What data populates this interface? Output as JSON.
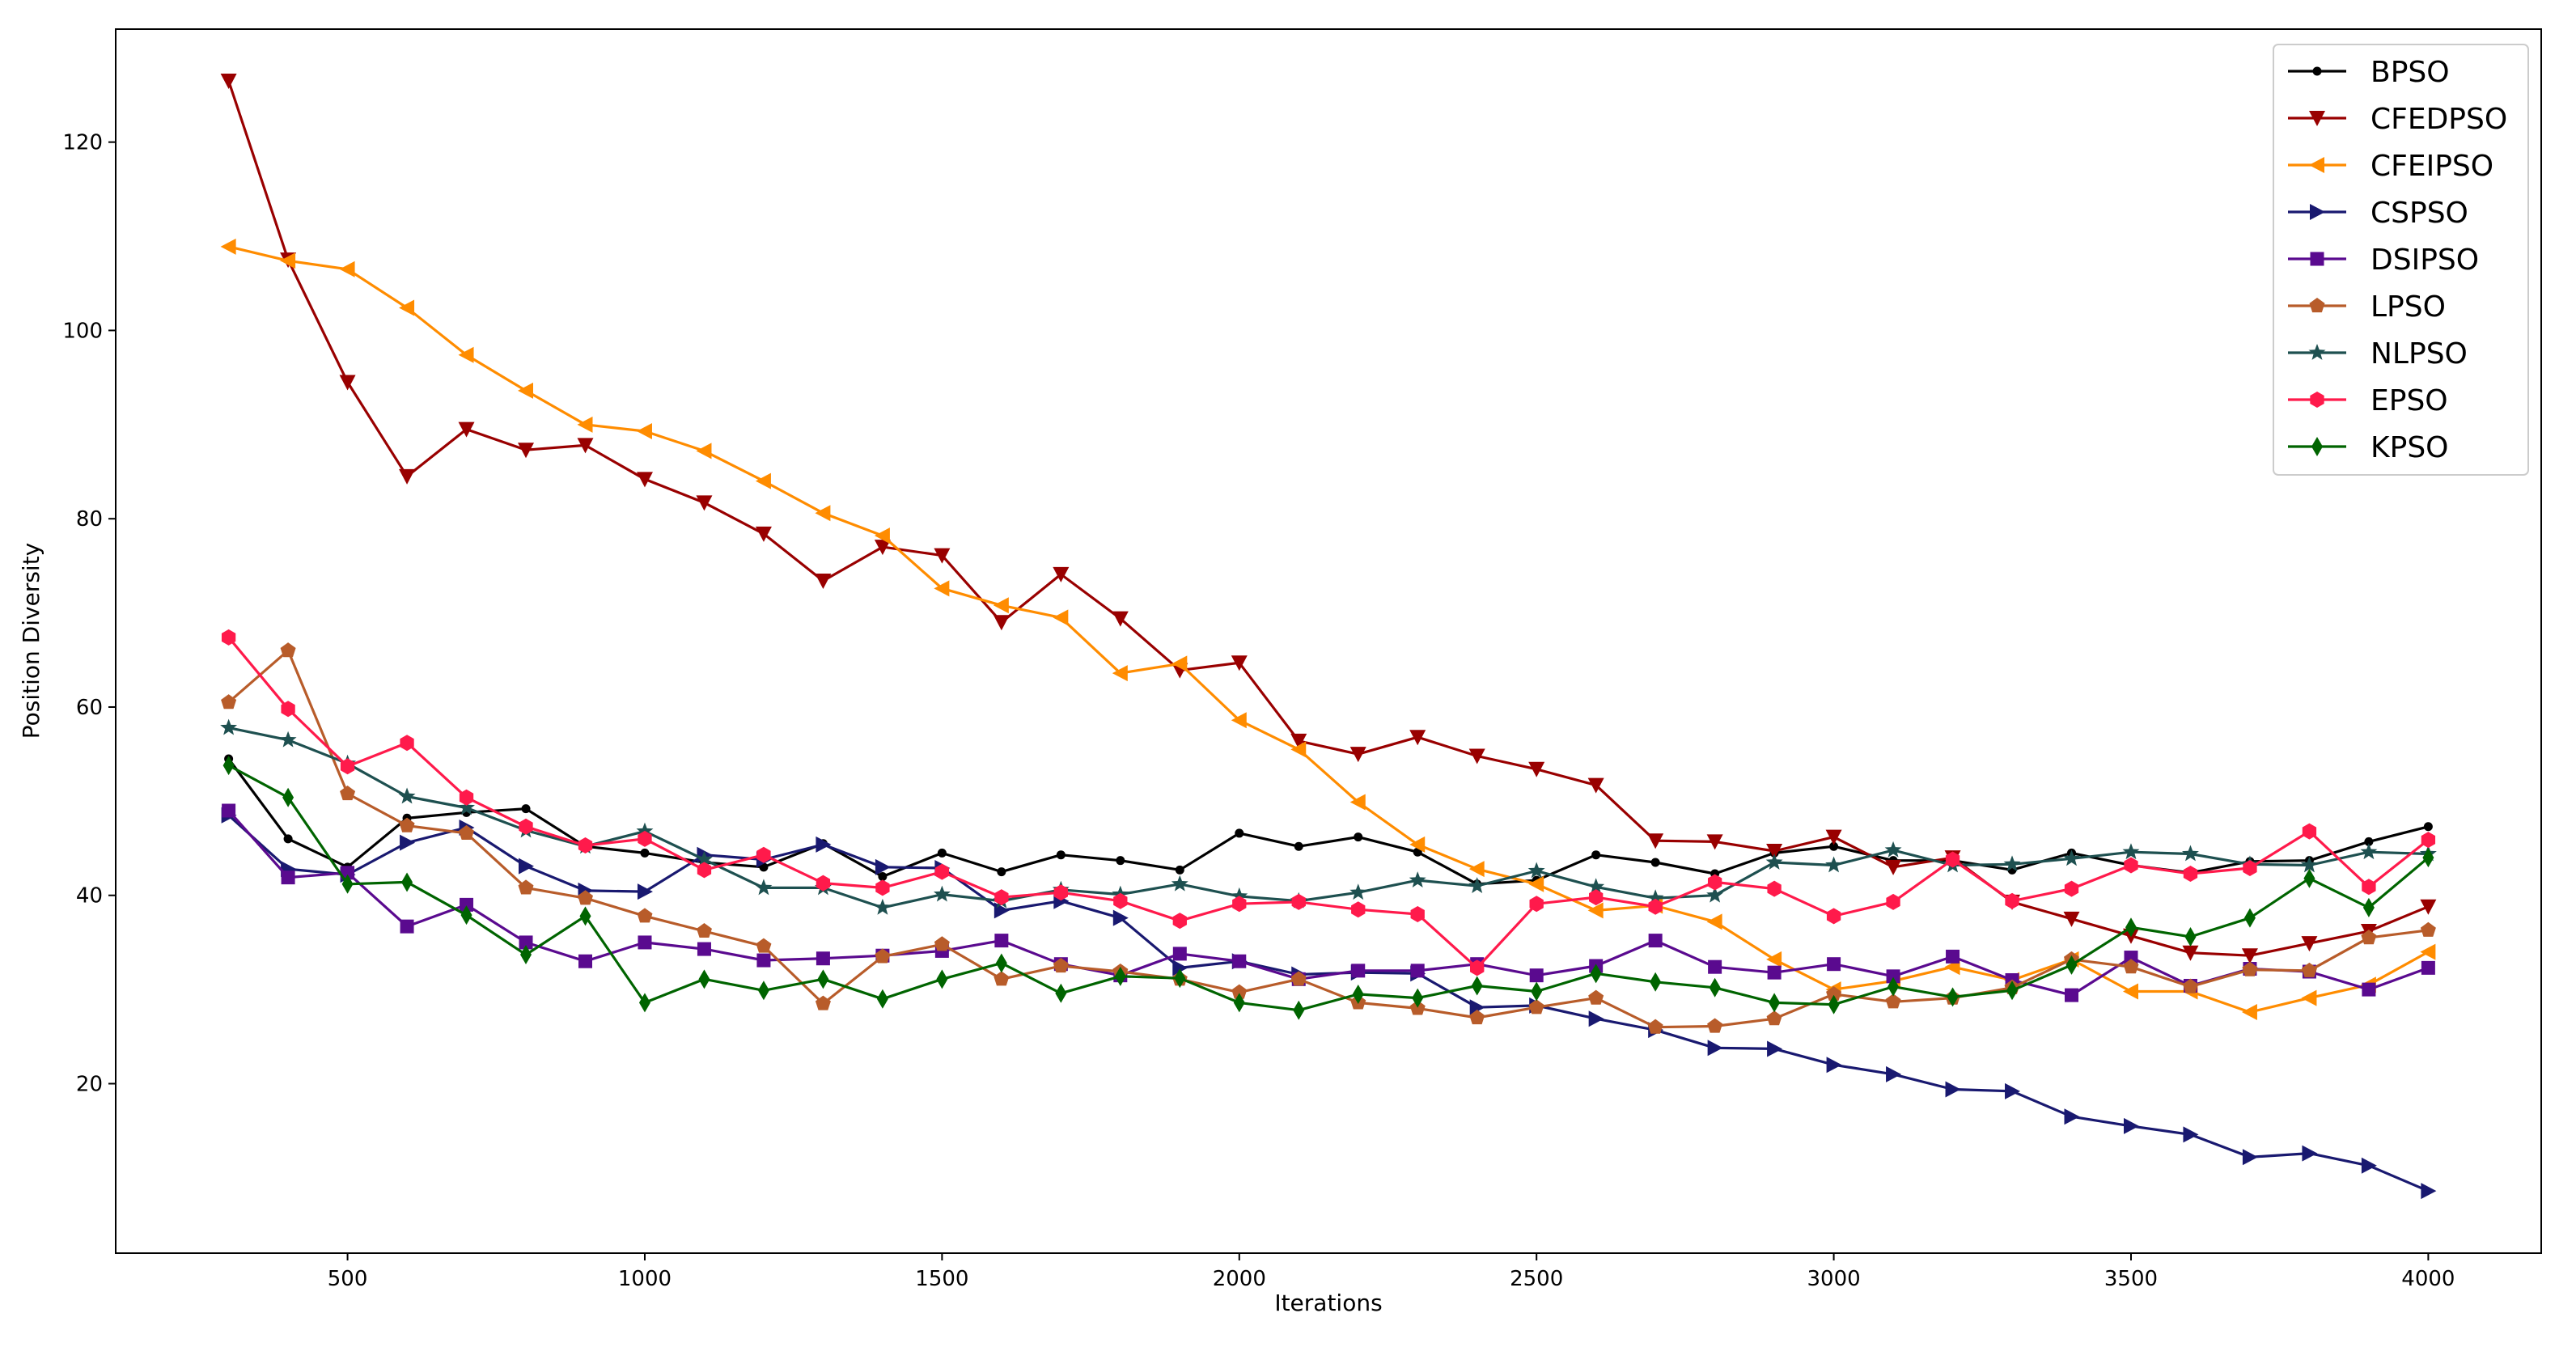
{
  "chart_data": {
    "type": "line",
    "title": "",
    "xlabel": "Iterations",
    "ylabel": "Position Diversity",
    "xlim": [
      110,
      4190
    ],
    "ylim": [
      2,
      132
    ],
    "xticks": [
      500,
      1000,
      1500,
      2000,
      2500,
      3000,
      3500,
      4000
    ],
    "yticks": [
      20,
      40,
      60,
      80,
      100,
      120
    ],
    "grid": false,
    "legend_position": "top-right",
    "x": [
      300,
      400,
      500,
      600,
      700,
      800,
      900,
      1000,
      1100,
      1200,
      1300,
      1400,
      1500,
      1600,
      1700,
      1800,
      1900,
      2000,
      2100,
      2200,
      2300,
      2400,
      2500,
      2600,
      2700,
      2800,
      2900,
      3000,
      3100,
      3200,
      3300,
      3400,
      3500,
      3600,
      3700,
      3800,
      3900,
      4000
    ],
    "series": [
      {
        "name": "BPSO",
        "color": "#000000",
        "marker": "point",
        "values": [
          54.5,
          46,
          43,
          48.2,
          48.8,
          49.2,
          45.2,
          44.5,
          43.5,
          43,
          45.5,
          42,
          44.5,
          42.5,
          44.3,
          43.7,
          42.7,
          46.6,
          45.2,
          46.2,
          44.6,
          41.2,
          41.6,
          44.3,
          43.5,
          42.3,
          44.5,
          45.2,
          43.7,
          43.7,
          42.7,
          44.5,
          43.2,
          42.4,
          43.6,
          43.7,
          45.7,
          47.3
        ]
      },
      {
        "name": "CFEDPSO",
        "color": "#990000",
        "marker": "triangle-down",
        "values": [
          126.5,
          107.5,
          94.5,
          84.5,
          89.5,
          87.3,
          87.8,
          84.2,
          81.7,
          78.4,
          73.4,
          77,
          76.1,
          69,
          74.1,
          69.4,
          63.9,
          64.7,
          56.4,
          55,
          56.8,
          54.8,
          53.4,
          51.7,
          45.8,
          45.7,
          44.7,
          46.2,
          43,
          44,
          39.3,
          37.5,
          35.7,
          33.9,
          33.6,
          34.9,
          36.2,
          38.8
        ]
      },
      {
        "name": "CFEIPSO",
        "color": "#ff8c00",
        "marker": "triangle-left",
        "values": [
          108.9,
          107.4,
          106.5,
          102.4,
          97.4,
          93.6,
          90,
          89.3,
          87.2,
          84,
          80.6,
          78.2,
          72.6,
          70.8,
          69.5,
          63.6,
          64.6,
          58.6,
          55.5,
          49.9,
          45.4,
          42.8,
          41.2,
          38.4,
          38.9,
          37.2,
          33.2,
          30,
          30.9,
          32.4,
          31,
          33.2,
          29.8,
          29.8,
          27.6,
          29.1,
          30.5,
          34
        ]
      },
      {
        "name": "CSPSO",
        "color": "#191970",
        "marker": "triangle-right",
        "values": [
          48.5,
          42.8,
          42.2,
          45.6,
          47.2,
          43.1,
          40.5,
          40.4,
          44.3,
          43.8,
          45.4,
          43,
          42.9,
          38.4,
          39.4,
          37.6,
          32.3,
          33,
          31.6,
          31.8,
          31.7,
          28.1,
          28.3,
          26.9,
          25.7,
          23.8,
          23.7,
          22,
          21,
          19.4,
          19.2,
          16.5,
          15.5,
          14.6,
          12.2,
          12.6,
          11.3,
          8.6
        ]
      },
      {
        "name": "DSIPSO",
        "color": "#5a0a8f",
        "marker": "square",
        "values": [
          49,
          41.9,
          42.4,
          36.7,
          39,
          35,
          33,
          35,
          34.3,
          33.1,
          33.3,
          33.6,
          34.1,
          35.2,
          32.7,
          31.5,
          33.8,
          33,
          31.1,
          32,
          32,
          32.7,
          31.5,
          32.5,
          35.2,
          32.4,
          31.8,
          32.7,
          31.4,
          33.5,
          31,
          29.4,
          33.4,
          30.4,
          32.2,
          31.9,
          30,
          32.3
        ]
      },
      {
        "name": "LPSO",
        "color": "#b85c2a",
        "marker": "pentagon",
        "values": [
          60.5,
          66,
          50.8,
          47.4,
          46.6,
          40.8,
          39.7,
          37.8,
          36.2,
          34.6,
          28.5,
          33.5,
          34.8,
          31.1,
          32.5,
          31.9,
          31.1,
          29.7,
          31.1,
          28.6,
          28.0,
          27.0,
          28.1,
          29.1,
          26.0,
          26.1,
          26.9,
          29.5,
          28.7,
          29.1,
          30.2,
          33.2,
          32.4,
          30.3,
          32.1,
          32,
          35.5,
          36.3
        ]
      },
      {
        "name": "NLPSO",
        "color": "#1e5050",
        "marker": "star",
        "values": [
          57.8,
          56.5,
          54,
          50.5,
          49.3,
          46.9,
          45.2,
          46.8,
          43.8,
          40.8,
          40.8,
          38.7,
          40.1,
          39.4,
          40.6,
          40.1,
          41.2,
          39.9,
          39.4,
          40.3,
          41.6,
          41,
          42.6,
          40.9,
          39.7,
          40.0,
          43.5,
          43.2,
          44.8,
          43.2,
          43.3,
          43.9,
          44.6,
          44.4,
          43.3,
          43.2,
          44.6,
          44.4
        ]
      },
      {
        "name": "EPSO",
        "color": "#ff1a4b",
        "marker": "hexagon",
        "values": [
          67.4,
          59.8,
          53.7,
          56.2,
          50.4,
          47.3,
          45.3,
          46,
          42.7,
          44.3,
          41.3,
          40.8,
          42.5,
          39.8,
          40.3,
          39.4,
          37.3,
          39.1,
          39.3,
          38.5,
          38,
          32.3,
          39.1,
          39.8,
          38.8,
          41.4,
          40.7,
          37.8,
          39.3,
          43.8,
          39.4,
          40.7,
          43.2,
          42.3,
          42.9,
          46.8,
          40.9,
          45.9
        ]
      },
      {
        "name": "KPSO",
        "color": "#006400",
        "marker": "diamond",
        "values": [
          53.8,
          50.4,
          41.2,
          41.4,
          37.9,
          33.7,
          37.8,
          28.6,
          31.1,
          29.9,
          31.1,
          29,
          31.1,
          32.8,
          29.6,
          31.4,
          31.2,
          28.6,
          27.8,
          29.5,
          29.1,
          30.4,
          29.8,
          31.7,
          30.8,
          30.2,
          28.6,
          28.4,
          30.3,
          29.2,
          29.9,
          32.6,
          36.6,
          35.6,
          37.6,
          41.8,
          38.7,
          44
        ]
      }
    ]
  }
}
